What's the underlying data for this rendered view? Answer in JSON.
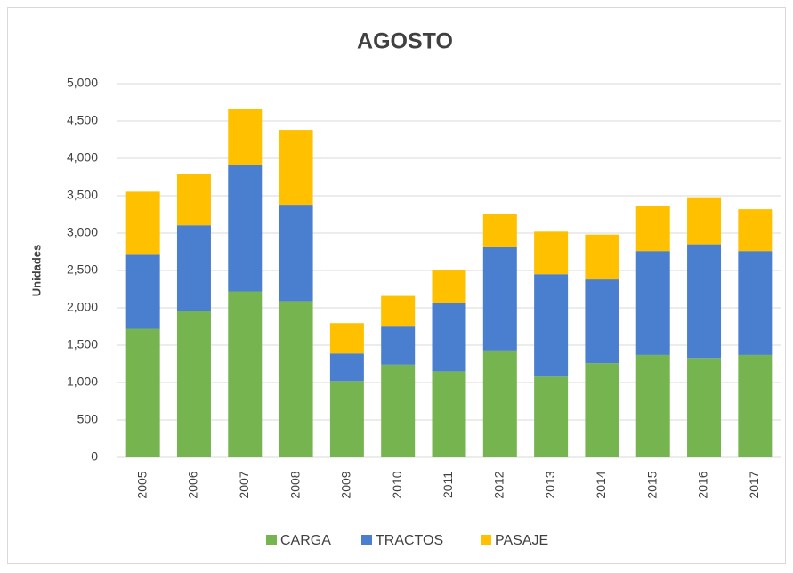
{
  "chart_data": {
    "type": "stacked_bar",
    "title": "AGOSTO",
    "y_label": "Unidades",
    "categories": [
      "2005",
      "2006",
      "2007",
      "2008",
      "2009",
      "2010",
      "2011",
      "2012",
      "2013",
      "2014",
      "2015",
      "2016",
      "2017"
    ],
    "series": [
      {
        "name": "CARGA",
        "color": "#76b44f",
        "values": [
          1720,
          1960,
          2220,
          2090,
          1020,
          1240,
          1150,
          1430,
          1080,
          1260,
          1370,
          1330,
          1370
        ]
      },
      {
        "name": "TRACTOS",
        "color": "#4a7fd0",
        "values": [
          990,
          1145,
          1685,
          1290,
          370,
          520,
          910,
          1380,
          1370,
          1120,
          1390,
          1520,
          1390
        ]
      },
      {
        "name": "PASAJE",
        "color": "#ffc000",
        "values": [
          845,
          690,
          760,
          1000,
          405,
          400,
          450,
          450,
          570,
          600,
          600,
          630,
          560
        ]
      }
    ],
    "ylim": [
      0,
      5000
    ],
    "yticks": [
      0,
      500,
      {
        "value": 1000,
        "label": "1,000"
      },
      {
        "value": 1500,
        "label": "1,500"
      },
      {
        "value": 2000,
        "label": "2,000"
      },
      {
        "value": 2500,
        "label": "2,500"
      },
      {
        "value": 3000,
        "label": "3,000"
      },
      {
        "value": 3500,
        "label": "3,500"
      },
      {
        "value": 4000,
        "label": "4,000"
      },
      {
        "value": 4500,
        "label": "4,500"
      },
      {
        "value": 5000,
        "label": "5,000"
      }
    ],
    "grid": true,
    "legend": "bottom"
  }
}
